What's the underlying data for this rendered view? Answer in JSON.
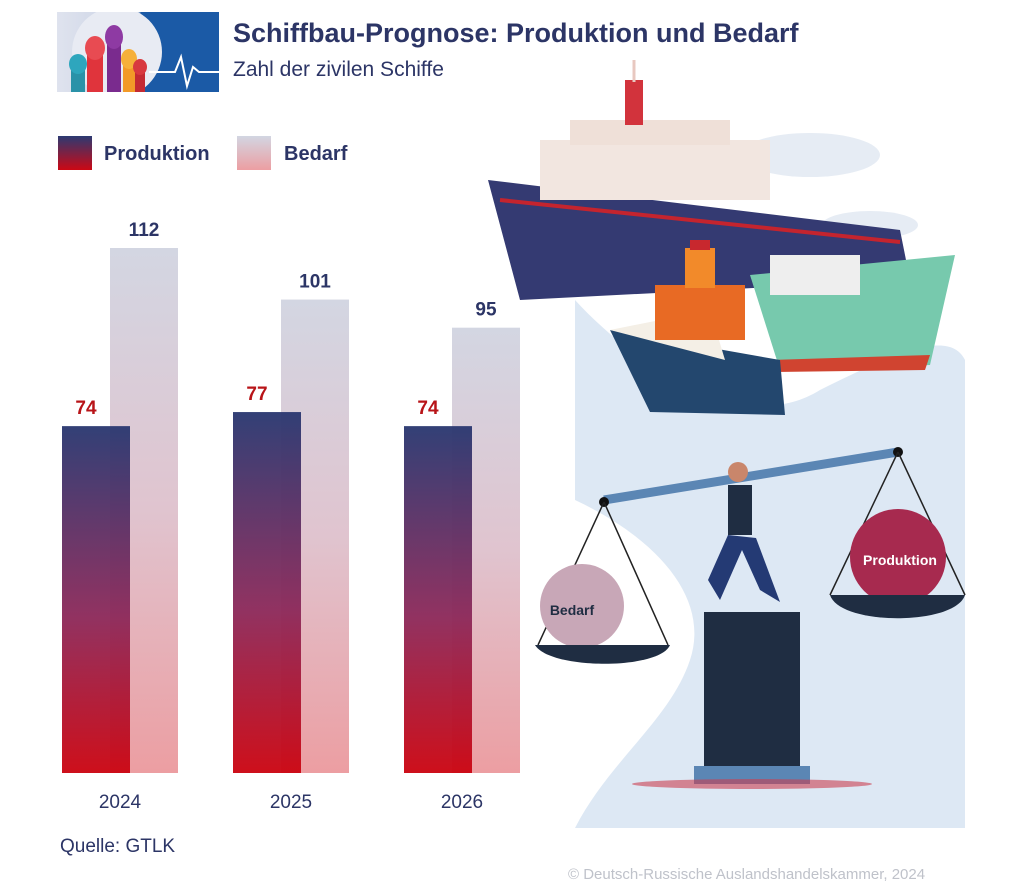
{
  "header": {
    "title": "Schiffbau-Prognose: Produktion und Bedarf",
    "subtitle": "Zahl der zivilen Schiffe"
  },
  "legend": {
    "production": "Produktion",
    "demand": "Bedarf"
  },
  "illustration": {
    "left_pan_label": "Bedarf",
    "right_pan_label": "Produktion"
  },
  "footer": {
    "source": "Quelle: GTLK",
    "copyright": "© Deutsch-Russische Auslandshandelskammer, 2024"
  },
  "colors": {
    "production_top": "#2c3a72",
    "production_bottom": "#cc0814",
    "demand_top": "#d2d6e2",
    "demand_bottom": "#ec9ea2",
    "production_label": "#b81418",
    "demand_label": "#2c3566"
  },
  "chart_data": {
    "type": "bar",
    "title": "Schiffbau-Prognose: Produktion und Bedarf",
    "subtitle": "Zahl der zivilen Schiffe",
    "categories": [
      "2024",
      "2025",
      "2026"
    ],
    "series": [
      {
        "name": "Produktion",
        "values": [
          74,
          77,
          74
        ]
      },
      {
        "name": "Bedarf",
        "values": [
          112,
          101,
          95
        ]
      }
    ],
    "ylim": [
      0,
      112
    ],
    "xlabel": "",
    "ylabel": "",
    "grid": false,
    "legend": "top-left"
  }
}
